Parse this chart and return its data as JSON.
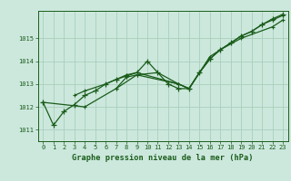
{
  "title": "",
  "xlabel": "Graphe pression niveau de la mer (hPa)",
  "background_color": "#cce8dd",
  "grid_color": "#aacfbb",
  "line_color": "#1a5c1a",
  "xlim": [
    -0.5,
    23.5
  ],
  "ylim": [
    1010.5,
    1016.2
  ],
  "yticks": [
    1011,
    1012,
    1013,
    1014,
    1015
  ],
  "xticks": [
    0,
    1,
    2,
    3,
    4,
    5,
    6,
    7,
    8,
    9,
    10,
    11,
    12,
    13,
    14,
    15,
    16,
    17,
    18,
    19,
    20,
    21,
    22,
    23
  ],
  "main_series": {
    "x": [
      0,
      1,
      2,
      3,
      4,
      5,
      6,
      7,
      8,
      9,
      10,
      11,
      12,
      13,
      14,
      15,
      16,
      17,
      18,
      19,
      20,
      21,
      22,
      23
    ],
    "y": [
      1012.2,
      1011.2,
      1011.8,
      1012.1,
      1012.5,
      1012.7,
      1013.0,
      1013.2,
      1013.35,
      1013.5,
      1014.0,
      1013.5,
      1013.0,
      1012.8,
      1012.8,
      1013.5,
      1014.1,
      1014.5,
      1014.8,
      1015.1,
      1015.3,
      1015.6,
      1015.85,
      1016.05
    ]
  },
  "extra_lines": [
    {
      "x": [
        0,
        4,
        7,
        9,
        11,
        13,
        14,
        15,
        16,
        17,
        19,
        22,
        23
      ],
      "y": [
        1012.2,
        1012.0,
        1012.8,
        1013.4,
        1013.5,
        1013.0,
        1012.8,
        1013.5,
        1014.2,
        1014.5,
        1015.0,
        1015.5,
        1015.8
      ]
    },
    {
      "x": [
        3,
        4,
        6,
        7,
        8,
        9,
        13,
        14,
        15,
        16,
        17,
        18,
        19,
        20,
        21,
        22,
        23
      ],
      "y": [
        1012.5,
        1012.7,
        1013.0,
        1013.2,
        1013.4,
        1013.5,
        1013.0,
        1012.8,
        1013.5,
        1014.1,
        1014.5,
        1014.8,
        1015.1,
        1015.3,
        1015.6,
        1015.8,
        1016.0
      ]
    },
    {
      "x": [
        7,
        8,
        9,
        13,
        14,
        15,
        16
      ],
      "y": [
        1012.8,
        1013.3,
        1013.4,
        1013.0,
        1012.8,
        1013.5,
        1014.1
      ]
    }
  ]
}
